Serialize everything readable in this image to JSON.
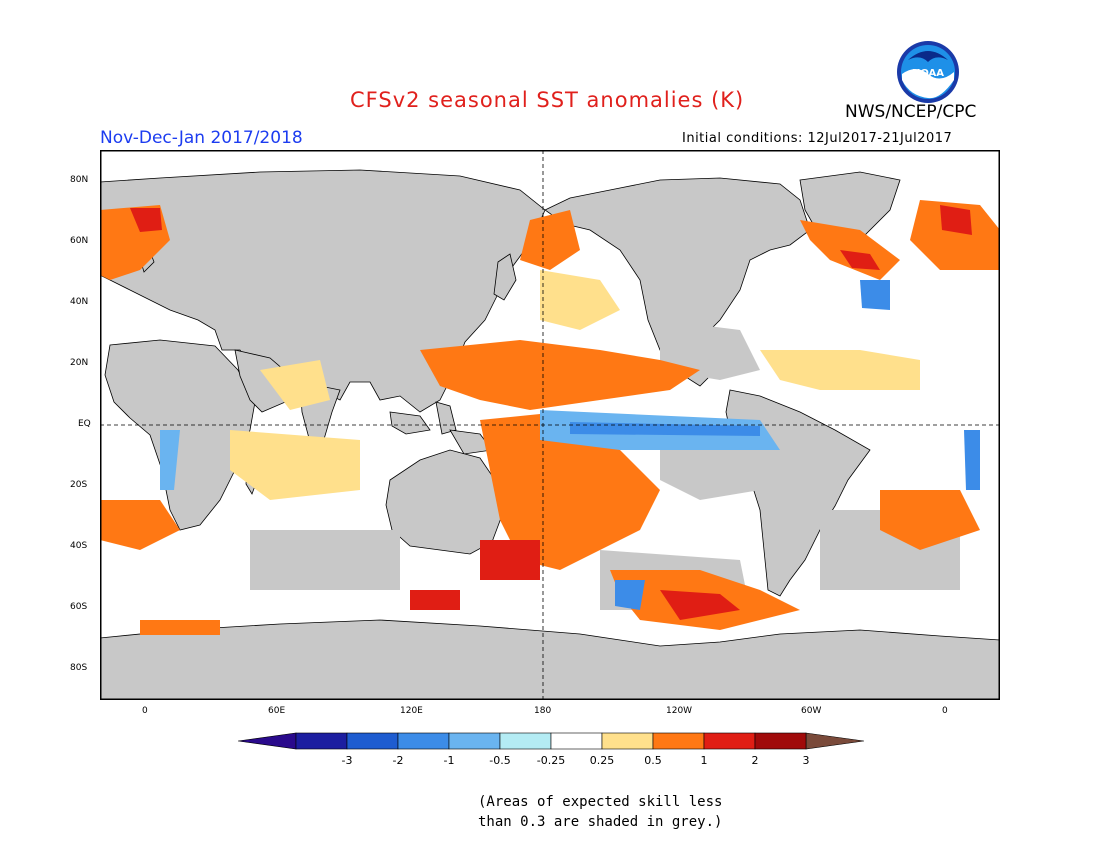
{
  "title": "CFSv2 seasonal SST anomalies (K)",
  "period": "Nov-Dec-Jan 2017/2018",
  "agency": "NWS/NCEP/CPC",
  "logo_text": "NOAA",
  "initial_conditions": "Initial conditions: 12Jul2017-21Jul2017",
  "lat_labels": [
    "80N",
    "60N",
    "40N",
    "20N",
    "EQ",
    "20S",
    "40S",
    "60S",
    "80S"
  ],
  "lon_labels": [
    "0",
    "60E",
    "120E",
    "180",
    "120W",
    "60W",
    "0"
  ],
  "colorbar": {
    "ticks": [
      "-3",
      "-2",
      "-1",
      "-0.5",
      "-0.25",
      "0.25",
      "0.5",
      "1",
      "2",
      "3"
    ],
    "colors": [
      "#1c1ea0",
      "#1e5cd0",
      "#3c8ce8",
      "#6ab4f0",
      "#b4ecf4",
      "#ffffff",
      "#ffe08c",
      "#ff7814",
      "#e01e14",
      "#a00a0a"
    ],
    "under_color": "#2a0a8c",
    "over_color": "#7a4a3a"
  },
  "mask_color": "#c8c8c8",
  "footnote_line1": "(Areas of expected skill less",
  "footnote_line2": "than 0.3 are shaded in grey.)"
}
